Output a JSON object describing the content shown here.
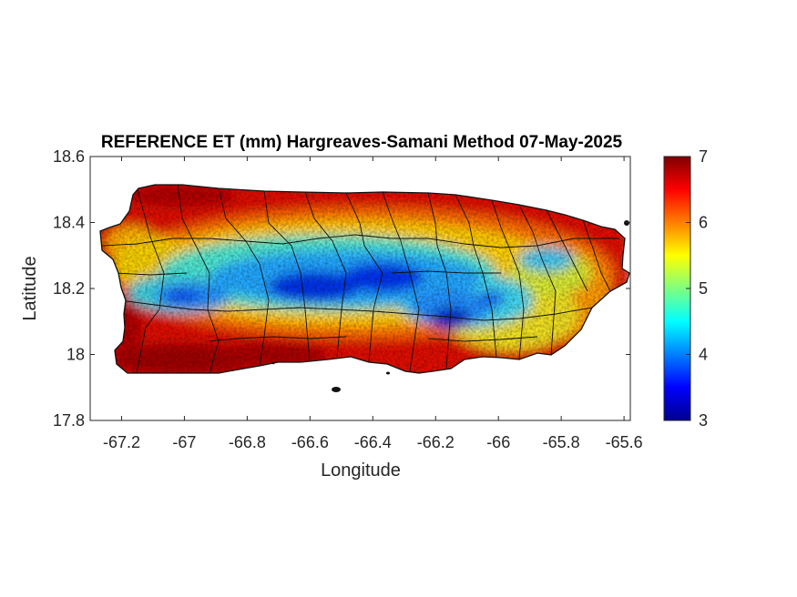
{
  "figure": {
    "title": "REFERENCE ET (mm) Hargreaves-Samani Method  07-May-2025",
    "xlabel": "Longitude",
    "ylabel": "Latitude"
  },
  "chart_data": {
    "type": "heatmap",
    "title": "REFERENCE ET (mm) Hargreaves-Samani Method  07-May-2025",
    "xlabel": "Longitude",
    "ylabel": "Latitude",
    "xlim": [
      -67.3,
      -65.58
    ],
    "ylim": [
      17.8,
      18.6
    ],
    "xticks": [
      -67.2,
      -67,
      -66.8,
      -66.6,
      -66.4,
      -66.2,
      -66,
      -65.8,
      -65.6
    ],
    "yticks": [
      17.8,
      18,
      18.2,
      18.4,
      18.6
    ],
    "xtick_labels": [
      "-67.2",
      "-67",
      "-66.8",
      "-66.6",
      "-66.4",
      "-66.2",
      "-66",
      "-65.8",
      "-65.6"
    ],
    "ytick_labels": [
      "17.8",
      "18",
      "18.2",
      "18.4",
      "18.6"
    ],
    "colorbar": {
      "colormap": "jet",
      "limits": [
        3,
        7
      ],
      "ticks": [
        3,
        4,
        5,
        6,
        7
      ],
      "tick_labels": [
        "3",
        "4",
        "5",
        "6",
        "7"
      ]
    },
    "region": "Puerto Rico",
    "pattern": "highest values (~6.5–7 mm) along the coasts, lowest values (~3–4 mm) over the central mountain range",
    "minimum_area": "central interior near -66.4, 18.2 (~3 mm)",
    "maximum_area": "southern and northern coastal plains (~7 mm)"
  }
}
